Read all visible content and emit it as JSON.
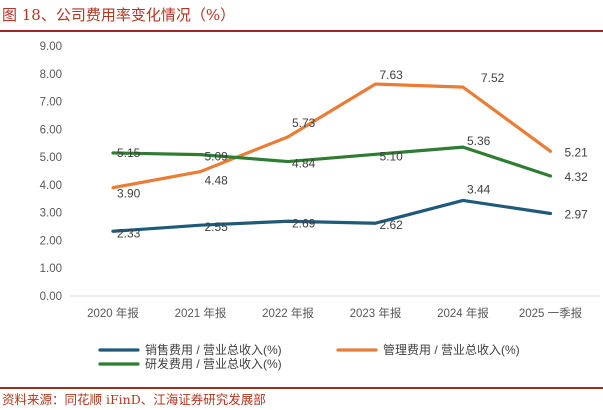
{
  "figure": {
    "title": "图 18、公司费用率变化情况（%）",
    "source": "资料来源：同花顺 iFinD、江海证券研究发展部"
  },
  "chart_data": {
    "type": "line",
    "title": "公司费用率变化情况（%）",
    "categories": [
      "2020 年报",
      "2021 年报",
      "2022 年报",
      "2023 年报",
      "2024 年报",
      "2025 一季报"
    ],
    "ylim": [
      0,
      9
    ],
    "yticks": [
      "0.00",
      "1.00",
      "2.00",
      "3.00",
      "4.00",
      "5.00",
      "6.00",
      "7.00",
      "8.00",
      "9.00"
    ],
    "grid": false,
    "legend_position": "bottom",
    "series": [
      {
        "name": "销售费用 / 营业总收入(%)",
        "color": "#1f5a7a",
        "values": [
          2.33,
          2.55,
          2.69,
          2.62,
          3.44,
          2.97
        ],
        "labels": [
          "2.33",
          "2.55",
          "2.69",
          "2.62",
          "3.44",
          "2.97"
        ]
      },
      {
        "name": "管理费用 / 营业总收入(%)",
        "color": "#ea7c35",
        "values": [
          3.9,
          4.48,
          5.73,
          7.63,
          7.52,
          5.21
        ],
        "labels": [
          "3.90",
          "4.48",
          "5.73",
          "7.63",
          "7.52",
          "5.21"
        ]
      },
      {
        "name": "研发费用 / 营业总收入(%)",
        "color": "#2e7d32",
        "values": [
          5.15,
          5.09,
          4.84,
          5.1,
          5.36,
          4.32
        ],
        "labels": [
          "5.15",
          "5.09",
          "4.84",
          "5.10",
          "5.36",
          "4.32"
        ]
      }
    ]
  }
}
